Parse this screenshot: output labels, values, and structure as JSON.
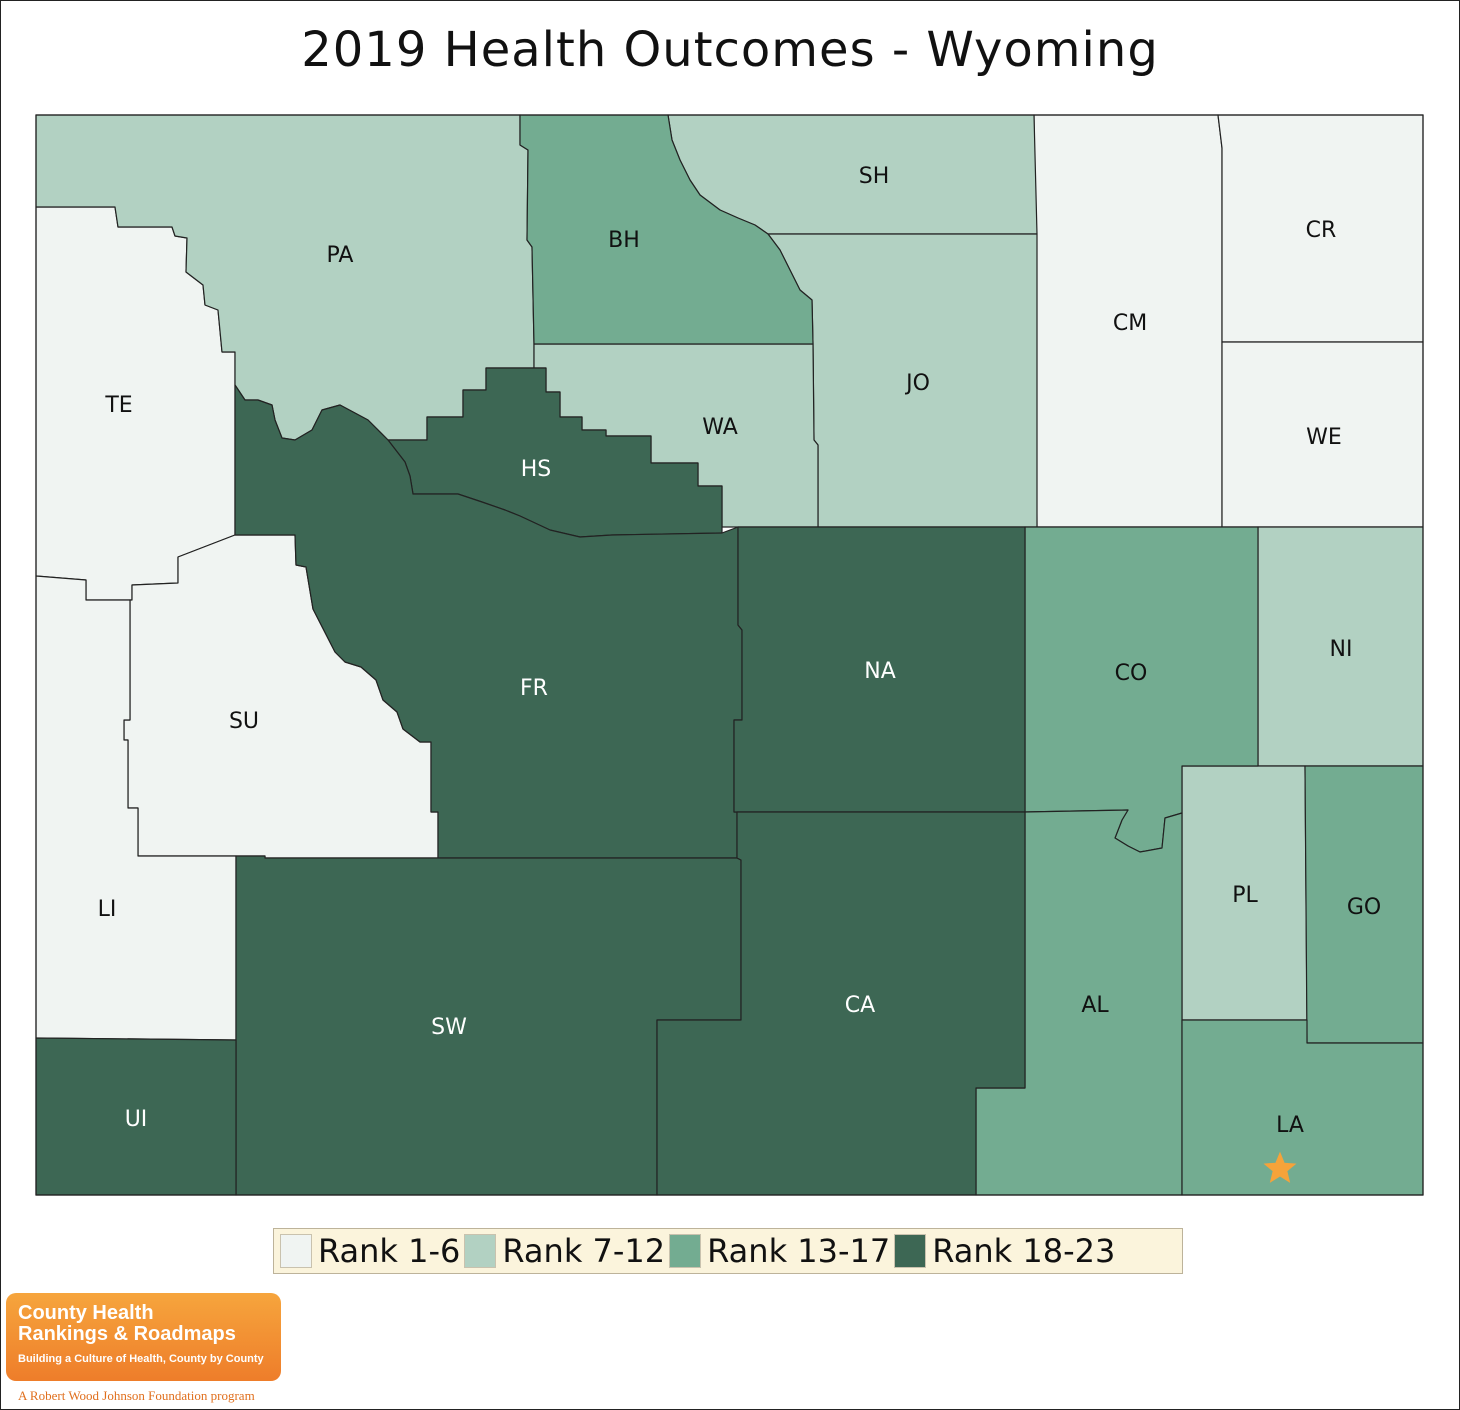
{
  "title": "2019 Health Outcomes - Wyoming",
  "colors": {
    "rank_1_6": "#f0f4f2",
    "rank_7_12": "#b2d1c2",
    "rank_13_17": "#73ac91",
    "rank_18_23": "#3d6754",
    "border": "#222222",
    "star": "#f6a33a",
    "legend_bg": "#fbf4dc"
  },
  "legend": [
    {
      "label": "Rank 1-6",
      "color": "#f0f4f2"
    },
    {
      "label": "Rank 7-12",
      "color": "#b2d1c2"
    },
    {
      "label": "Rank 13-17",
      "color": "#73ac91"
    },
    {
      "label": "Rank 18-23",
      "color": "#3d6754"
    }
  ],
  "counties": {
    "TE": {
      "label": "TE",
      "rank_group": "1-6"
    },
    "SU": {
      "label": "SU",
      "rank_group": "1-6"
    },
    "LI": {
      "label": "LI",
      "rank_group": "1-6"
    },
    "CM": {
      "label": "CM",
      "rank_group": "1-6"
    },
    "CR": {
      "label": "CR",
      "rank_group": "1-6"
    },
    "WE": {
      "label": "WE",
      "rank_group": "1-6"
    },
    "PA": {
      "label": "PA",
      "rank_group": "7-12"
    },
    "SH": {
      "label": "SH",
      "rank_group": "7-12"
    },
    "JO": {
      "label": "JO",
      "rank_group": "7-12"
    },
    "WA": {
      "label": "WA",
      "rank_group": "7-12"
    },
    "NI": {
      "label": "NI",
      "rank_group": "7-12"
    },
    "PL": {
      "label": "PL",
      "rank_group": "7-12"
    },
    "BH": {
      "label": "BH",
      "rank_group": "13-17"
    },
    "CO": {
      "label": "CO",
      "rank_group": "13-17"
    },
    "AL": {
      "label": "AL",
      "rank_group": "13-17"
    },
    "GO": {
      "label": "GO",
      "rank_group": "13-17"
    },
    "LA": {
      "label": "LA",
      "rank_group": "13-17"
    },
    "HS": {
      "label": "HS",
      "rank_group": "18-23"
    },
    "FR": {
      "label": "FR",
      "rank_group": "18-23"
    },
    "NA": {
      "label": "NA",
      "rank_group": "18-23"
    },
    "SW": {
      "label": "SW",
      "rank_group": "18-23"
    },
    "CA": {
      "label": "CA",
      "rank_group": "18-23"
    },
    "UI": {
      "label": "UI",
      "rank_group": "18-23"
    }
  },
  "logo": {
    "line1": "County Health",
    "line2": "Rankings & Roadmaps",
    "tagline": "Building a Culture of Health, County by County",
    "footer": "A Robert Wood Johnson Foundation program"
  }
}
